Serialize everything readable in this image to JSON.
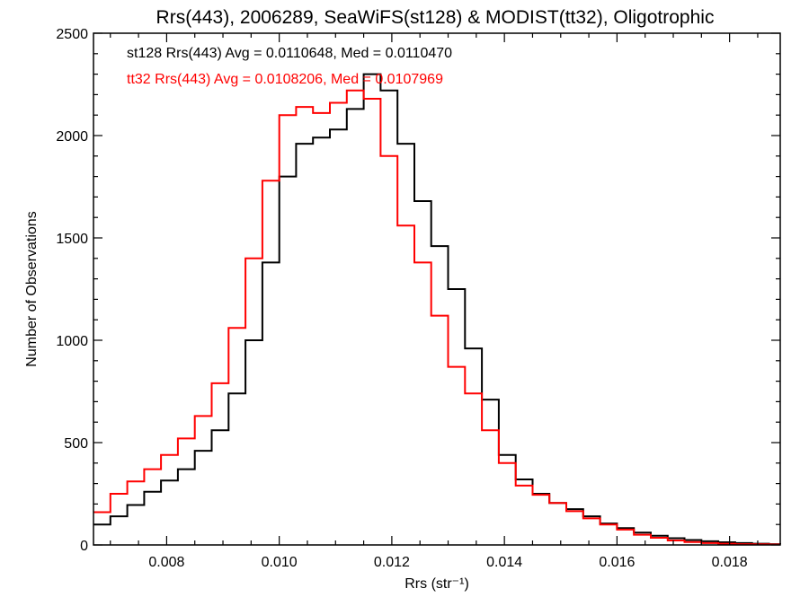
{
  "chart_data": {
    "type": "line",
    "title": "Rrs(443), 2006289, SeaWiFS(st128) & MODIST(tt32), Oligotrophic",
    "xlabel": "Rrs (str⁻¹)",
    "ylabel": "Number of Observations",
    "xlim": [
      0.0067,
      0.0189
    ],
    "ylim": [
      0,
      2500
    ],
    "xticks": [
      0.008,
      0.01,
      0.012,
      0.014,
      0.016,
      0.018
    ],
    "xtick_labels": [
      "0.008",
      "0.010",
      "0.012",
      "0.014",
      "0.016",
      "0.018"
    ],
    "yticks": [
      0,
      500,
      1000,
      1500,
      2000,
      2500
    ],
    "ytick_labels": [
      "0",
      "500",
      "1000",
      "1500",
      "2000",
      "2500"
    ],
    "grid": false,
    "annotations": [
      {
        "text": "st128 Rrs(443) Avg = 0.0110648, Med = 0.0110470",
        "color": "#000000"
      },
      {
        "text": "tt32 Rrs(443) Avg = 0.0108206, Med = 0.0107969",
        "color": "#ff0000"
      }
    ],
    "series": [
      {
        "color": "#000000",
        "x": [
          0.0067,
          0.007,
          0.0073,
          0.0076,
          0.0079,
          0.0082,
          0.0085,
          0.0088,
          0.0091,
          0.0094,
          0.0097,
          0.01,
          0.0103,
          0.0106,
          0.0109,
          0.0112,
          0.0115,
          0.0118,
          0.0121,
          0.0124,
          0.0127,
          0.013,
          0.0133,
          0.0136,
          0.0139,
          0.0142,
          0.0145,
          0.0148,
          0.0151,
          0.0154,
          0.0157,
          0.016,
          0.0163,
          0.0166,
          0.0169,
          0.0172,
          0.0175,
          0.0178,
          0.0181,
          0.0184,
          0.0187,
          0.0189
        ],
        "y": [
          100,
          140,
          195,
          260,
          315,
          370,
          460,
          560,
          740,
          1000,
          1380,
          1800,
          1960,
          1990,
          2030,
          2130,
          2300,
          2220,
          1960,
          1680,
          1460,
          1250,
          960,
          710,
          440,
          320,
          250,
          205,
          175,
          140,
          105,
          82,
          60,
          45,
          33,
          24,
          18,
          13,
          9,
          6,
          4,
          3
        ]
      },
      {
        "color": "#ff0000",
        "x": [
          0.0067,
          0.007,
          0.0073,
          0.0076,
          0.0079,
          0.0082,
          0.0085,
          0.0088,
          0.0091,
          0.0094,
          0.0097,
          0.01,
          0.0103,
          0.0106,
          0.0109,
          0.0112,
          0.0115,
          0.0118,
          0.0121,
          0.0124,
          0.0127,
          0.013,
          0.0133,
          0.0136,
          0.0139,
          0.0142,
          0.0145,
          0.0148,
          0.0151,
          0.0154,
          0.0157,
          0.016,
          0.0163,
          0.0166,
          0.0169,
          0.0172,
          0.0175,
          0.0178,
          0.0181,
          0.0184,
          0.0187,
          0.0189
        ],
        "y": [
          160,
          250,
          310,
          370,
          440,
          520,
          630,
          790,
          1060,
          1400,
          1780,
          2100,
          2140,
          2110,
          2160,
          2220,
          2180,
          1900,
          1560,
          1380,
          1120,
          870,
          740,
          560,
          400,
          290,
          245,
          205,
          165,
          130,
          100,
          75,
          50,
          35,
          22,
          14,
          9,
          6,
          4,
          3,
          2,
          2
        ]
      }
    ]
  }
}
